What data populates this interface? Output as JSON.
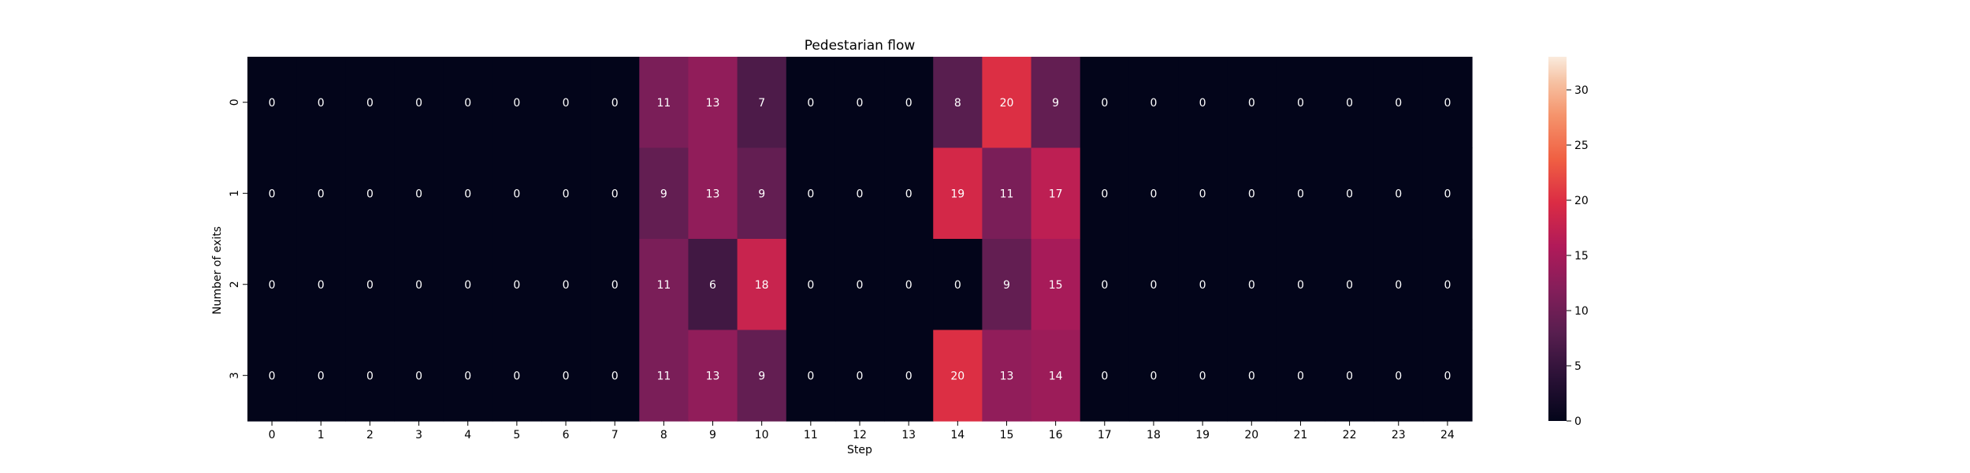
{
  "chart_data": {
    "type": "heatmap",
    "title": "Pedestarian flow",
    "xlabel": "Step",
    "ylabel": "Number of exits",
    "x_categories": [
      "0",
      "1",
      "2",
      "3",
      "4",
      "5",
      "6",
      "7",
      "8",
      "9",
      "10",
      "11",
      "12",
      "13",
      "14",
      "15",
      "16",
      "17",
      "18",
      "19",
      "20",
      "21",
      "22",
      "23",
      "24"
    ],
    "y_categories": [
      "0",
      "1",
      "2",
      "3"
    ],
    "values": [
      [
        0,
        0,
        0,
        0,
        0,
        0,
        0,
        0,
        11,
        13,
        7,
        0,
        0,
        0,
        8,
        20,
        9,
        0,
        0,
        0,
        0,
        0,
        0,
        0,
        0
      ],
      [
        0,
        0,
        0,
        0,
        0,
        0,
        0,
        0,
        9,
        13,
        9,
        0,
        0,
        0,
        19,
        11,
        17,
        0,
        0,
        0,
        0,
        0,
        0,
        0,
        0
      ],
      [
        0,
        0,
        0,
        0,
        0,
        0,
        0,
        0,
        11,
        6,
        18,
        0,
        0,
        0,
        0,
        9,
        15,
        0,
        0,
        0,
        0,
        0,
        0,
        0,
        0
      ],
      [
        0,
        0,
        0,
        0,
        0,
        0,
        0,
        0,
        11,
        13,
        9,
        0,
        0,
        0,
        20,
        13,
        14,
        0,
        0,
        0,
        0,
        0,
        0,
        0,
        0
      ]
    ],
    "color_range": [
      0,
      33
    ],
    "colorbar_ticks": [
      "0",
      "5",
      "10",
      "15",
      "20",
      "25",
      "30"
    ],
    "colormap": "rocket"
  }
}
